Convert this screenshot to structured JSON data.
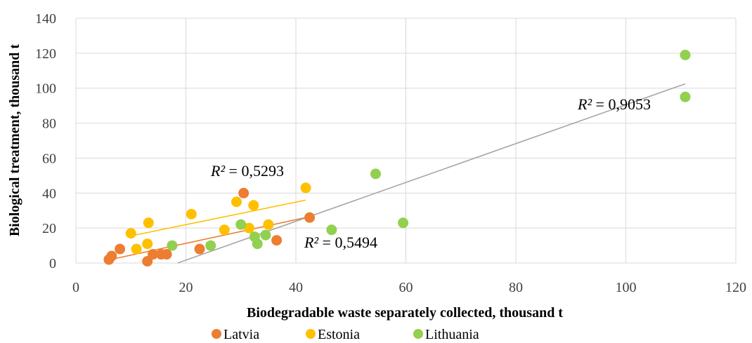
{
  "chart_data": {
    "type": "scatter",
    "xlabel": "Biodegradable waste separately collected, thousand t",
    "ylabel": "Biological treatment, thousand t",
    "xlim": [
      0,
      120
    ],
    "ylim": [
      0,
      140
    ],
    "xticks": [
      0,
      20,
      40,
      60,
      80,
      100,
      120
    ],
    "yticks": [
      0,
      20,
      40,
      60,
      80,
      100,
      120,
      140
    ],
    "grid": true,
    "legend_position": "bottom",
    "series": [
      {
        "name": "Latvia",
        "color": "#ed7d31",
        "points": [
          [
            6,
            2
          ],
          [
            6.5,
            4
          ],
          [
            8,
            8
          ],
          [
            13,
            1
          ],
          [
            14,
            5
          ],
          [
            15.5,
            5
          ],
          [
            16.5,
            5
          ],
          [
            22.5,
            8
          ],
          [
            30.5,
            40
          ],
          [
            36.5,
            13
          ],
          [
            42.5,
            26
          ]
        ],
        "trendline": {
          "x": [
            6,
            42.5
          ],
          "y": [
            1.8,
            26.5
          ],
          "r2_label": "R² = 0,5494"
        }
      },
      {
        "name": "Estonia",
        "color": "#ffc000",
        "points": [
          [
            10,
            17
          ],
          [
            11,
            8
          ],
          [
            13,
            11
          ],
          [
            13.2,
            23
          ],
          [
            21,
            28
          ],
          [
            27,
            19
          ],
          [
            29.2,
            35
          ],
          [
            31.5,
            20
          ],
          [
            32.3,
            33
          ],
          [
            35,
            22
          ],
          [
            41.8,
            43
          ]
        ],
        "trendline": {
          "x": [
            10,
            41.8
          ],
          "y": [
            15.5,
            36
          ],
          "r2_label": "R² = 0,5293"
        }
      },
      {
        "name": "Lithuania",
        "color": "#92d050",
        "points": [
          [
            17.5,
            10
          ],
          [
            24.5,
            10
          ],
          [
            30,
            22
          ],
          [
            32.5,
            15
          ],
          [
            33,
            11
          ],
          [
            34.5,
            16
          ],
          [
            46.5,
            19
          ],
          [
            54.5,
            51
          ],
          [
            59.5,
            23
          ],
          [
            110.8,
            119
          ],
          [
            110.8,
            95
          ]
        ],
        "trendline": {
          "x": [
            18.5,
            110.8
          ],
          "y": [
            0,
            102.5
          ],
          "r2_label": "R² = 0,9053"
        }
      }
    ]
  }
}
